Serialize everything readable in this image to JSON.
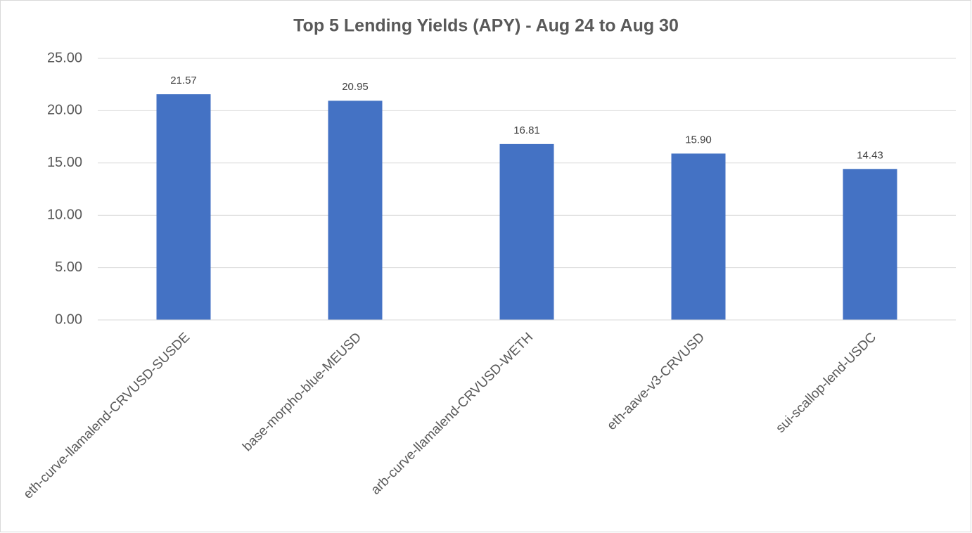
{
  "chart_data": {
    "type": "bar",
    "title": "Top 5 Lending Yields (APY) - Aug 24 to Aug 30",
    "categories": [
      "eth-curve-llamalend-CRVUSD-SUSDE",
      "base-morpho-blue-MEUSD",
      "arb-curve-llamalend-CRVUSD-WETH",
      "eth-aave-v3-CRVUSD",
      "sui-scallop-lend-USDC"
    ],
    "values": [
      21.57,
      20.95,
      16.81,
      15.9,
      14.43
    ],
    "value_labels": [
      "21.57",
      "20.95",
      "16.81",
      "15.90",
      "14.43"
    ],
    "color": "#4472c4",
    "ylim": [
      0,
      25
    ],
    "yticks": [
      {
        "value": 0,
        "label": "0.00"
      },
      {
        "value": 5,
        "label": "5.00"
      },
      {
        "value": 10,
        "label": "10.00"
      },
      {
        "value": 15,
        "label": "15.00"
      },
      {
        "value": 20,
        "label": "20.00"
      },
      {
        "value": 25,
        "label": "25.00"
      }
    ],
    "grid": true
  }
}
